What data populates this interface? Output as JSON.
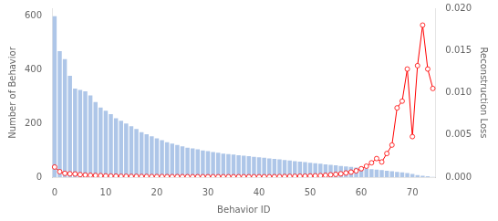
{
  "chart_data": {
    "type": "bar",
    "xlabel": "Behavior ID",
    "ylabel": "Number of Behavior",
    "y2label": "Reconstruction Loss",
    "categories": [
      "0",
      null,
      null,
      null,
      null,
      null,
      null,
      null,
      null,
      null,
      "10",
      null,
      null,
      null,
      null,
      null,
      null,
      null,
      null,
      null,
      "20",
      null,
      null,
      null,
      null,
      null,
      null,
      null,
      null,
      null,
      "30",
      null,
      null,
      null,
      null,
      null,
      null,
      null,
      null,
      null,
      "40",
      null,
      null,
      null,
      null,
      null,
      null,
      null,
      null,
      null,
      "50",
      null,
      null,
      null,
      null,
      null,
      null,
      null,
      null,
      null,
      "60",
      null,
      null,
      null,
      null,
      null,
      null,
      null,
      null,
      null,
      "70",
      null,
      null,
      null,
      null
    ],
    "series": [
      {
        "type": "bar",
        "color": "#aec6e8",
        "values": [
          600,
          470,
          440,
          378,
          330,
          325,
          320,
          305,
          280,
          260,
          248,
          235,
          220,
          210,
          200,
          190,
          180,
          168,
          160,
          152,
          145,
          138,
          130,
          125,
          120,
          115,
          110,
          107,
          104,
          100,
          97,
          94,
          91,
          88,
          86,
          84,
          82,
          80,
          78,
          76,
          74,
          72,
          70,
          68,
          66,
          64,
          62,
          60,
          58,
          56,
          54,
          52,
          50,
          48,
          46,
          44,
          42,
          40,
          38,
          36,
          34,
          32,
          30,
          28,
          26,
          24,
          22,
          20,
          18,
          15,
          12,
          8,
          5,
          3,
          1
        ]
      },
      {
        "type": "line",
        "color": "red",
        "marker": "circle",
        "axis": "y2",
        "values": [
          0.0012,
          0.00065,
          0.00045,
          0.0004,
          0.00038,
          0.0003,
          0.00025,
          0.00022,
          0.0002,
          0.00018,
          0.00015,
          0.00013,
          0.00012,
          0.0001,
          0.0001,
          9e-05,
          9e-05,
          8e-05,
          8e-05,
          7e-05,
          7e-05,
          7e-05,
          6e-05,
          6e-05,
          6e-05,
          6e-05,
          5e-05,
          5e-05,
          5e-05,
          5e-05,
          5e-05,
          5e-05,
          5e-05,
          5e-05,
          5e-05,
          5e-05,
          5e-05,
          5e-05,
          5e-05,
          5e-05,
          5e-05,
          5e-05,
          5e-05,
          6e-05,
          7e-05,
          8e-05,
          9e-05,
          0.0001,
          0.00011,
          0.00012,
          0.00014,
          0.00016,
          0.00018,
          0.00022,
          0.00028,
          0.00033,
          0.0004,
          0.0005,
          0.0006,
          0.00075,
          0.001,
          0.0013,
          0.0017,
          0.0022,
          0.0018,
          0.0028,
          0.0038,
          0.0082,
          0.009,
          0.0128,
          0.0048,
          0.0132,
          0.018,
          0.0128,
          0.0105
        ]
      }
    ],
    "ylim": [
      0,
      630
    ],
    "yticks": [
      0,
      200,
      400,
      600
    ],
    "y2lim": [
      0,
      0.02
    ],
    "y2ticks": [
      {
        "value": 0.0,
        "label": "0.000"
      },
      {
        "value": 0.005,
        "label": "0.005"
      },
      {
        "value": 0.01,
        "label": "0.010"
      },
      {
        "value": 0.015,
        "label": "0.015"
      },
      {
        "value": 0.02,
        "label": "0.020"
      }
    ],
    "grid": false
  }
}
